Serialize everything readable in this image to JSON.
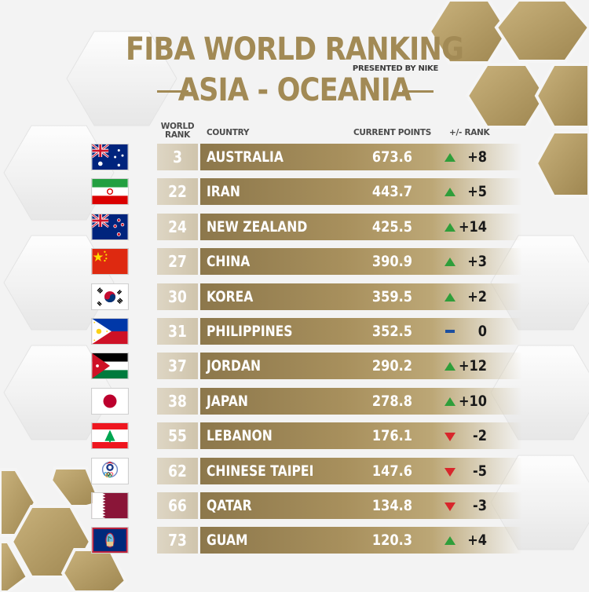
{
  "header": {
    "title": "FIBA WORLD RANKING",
    "presented_by": "PRESENTED BY NIKE",
    "region": "ASIA - OCEANIA"
  },
  "columns": {
    "world_rank": "WORLD RANK",
    "country": "COUNTRY",
    "current_points": "CURRENT POINTS",
    "change": "+/- RANK"
  },
  "colors": {
    "gold": "#a28a55",
    "up": "#2f9e3a",
    "down": "#d8262b",
    "same": "#1c4fa0"
  },
  "rows": [
    {
      "flag": "australia-flag-icon",
      "rank": "3",
      "country": "AUSTRALIA",
      "points": "673.6",
      "direction": "up",
      "change": "+8"
    },
    {
      "flag": "iran-flag-icon",
      "rank": "22",
      "country": "IRAN",
      "points": "443.7",
      "direction": "up",
      "change": "+5"
    },
    {
      "flag": "new-zealand-flag-icon",
      "rank": "24",
      "country": "NEW ZEALAND",
      "points": "425.5",
      "direction": "up",
      "change": "+14"
    },
    {
      "flag": "china-flag-icon",
      "rank": "27",
      "country": "CHINA",
      "points": "390.9",
      "direction": "up",
      "change": "+3"
    },
    {
      "flag": "korea-flag-icon",
      "rank": "30",
      "country": "KOREA",
      "points": "359.5",
      "direction": "up",
      "change": "+2"
    },
    {
      "flag": "philippines-flag-icon",
      "rank": "31",
      "country": "PHILIPPINES",
      "points": "352.5",
      "direction": "same",
      "change": "0"
    },
    {
      "flag": "jordan-flag-icon",
      "rank": "37",
      "country": "JORDAN",
      "points": "290.2",
      "direction": "up",
      "change": "+12"
    },
    {
      "flag": "japan-flag-icon",
      "rank": "38",
      "country": "JAPAN",
      "points": "278.8",
      "direction": "up",
      "change": "+10"
    },
    {
      "flag": "lebanon-flag-icon",
      "rank": "55",
      "country": "LEBANON",
      "points": "176.1",
      "direction": "down",
      "change": "-2"
    },
    {
      "flag": "chinese-taipei-flag-icon",
      "rank": "62",
      "country": "CHINESE TAIPEI",
      "points": "147.6",
      "direction": "down",
      "change": "-5"
    },
    {
      "flag": "qatar-flag-icon",
      "rank": "66",
      "country": "QATAR",
      "points": "134.8",
      "direction": "down",
      "change": "-3"
    },
    {
      "flag": "guam-flag-icon",
      "rank": "73",
      "country": "GUAM",
      "points": "120.3",
      "direction": "up",
      "change": "+4"
    }
  ]
}
